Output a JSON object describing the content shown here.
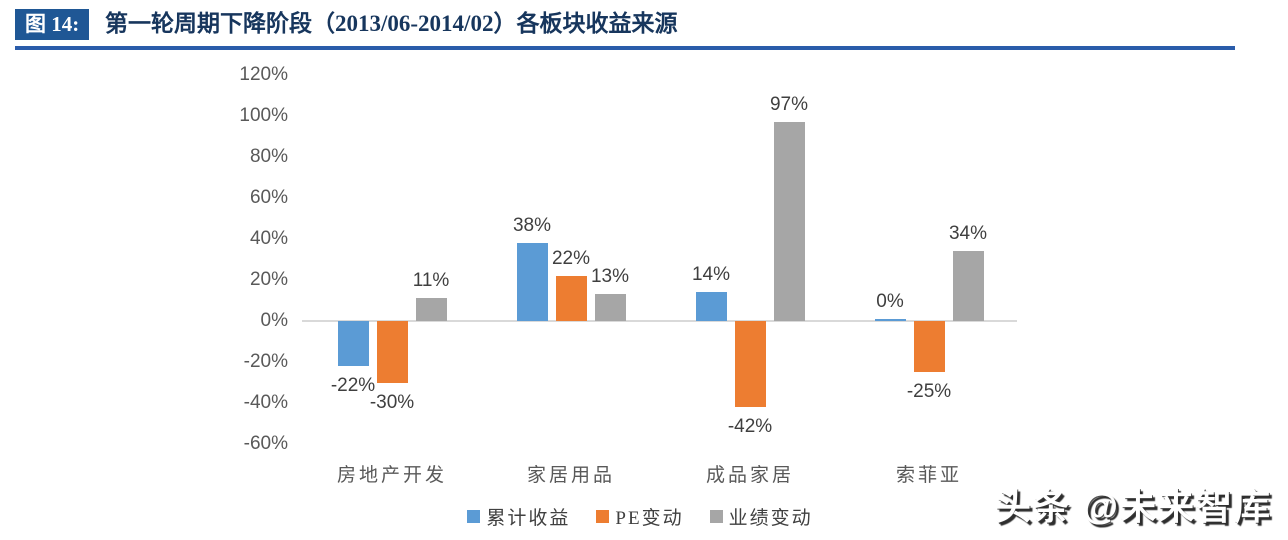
{
  "header": {
    "figure_label": "图 14:",
    "title": "第一轮周期下降阶段（2013/06-2014/02）各板块收益来源"
  },
  "watermark": {
    "text": "头条 @未来智库"
  },
  "colors": {
    "header_box": "#1F5795",
    "header_rule": "#2A5CAA",
    "title_text": "#17365D",
    "axis_line": "#D9D9D9",
    "tick_text": "#595959",
    "data_label_text": "#3F3F3F",
    "series_blue": "#5B9BD5",
    "series_orange": "#ED7D31",
    "series_gray": "#A6A6A6"
  },
  "chart_data": {
    "type": "bar",
    "title": "第一轮周期下降阶段（2013/06-2014/02）各板块收益来源",
    "categories": [
      "房地产开发",
      "家居用品",
      "成品家居",
      "索菲亚"
    ],
    "series": [
      {
        "name": "累计收益",
        "color": "#5B9BD5",
        "values": [
          -22,
          38,
          14,
          0
        ]
      },
      {
        "name": "PE变动",
        "color": "#ED7D31",
        "values": [
          -30,
          22,
          -42,
          -25
        ]
      },
      {
        "name": "业绩变动",
        "color": "#A6A6A6",
        "values": [
          11,
          13,
          97,
          34
        ]
      }
    ],
    "data_label_format": "{v}%",
    "y_ticks": [
      120,
      100,
      80,
      60,
      40,
      20,
      0,
      -20,
      -40,
      -60
    ],
    "y_tick_suffix": "%",
    "ylim": [
      -60,
      120
    ],
    "grid": false,
    "legend_position": "bottom"
  }
}
